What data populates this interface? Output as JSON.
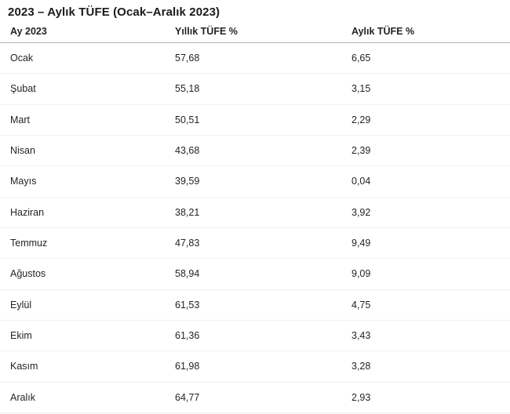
{
  "page": {
    "title": "2023 – Aylık TÜFE (Ocak–Aralık 2023)"
  },
  "table": {
    "columns": [
      "Ay 2023",
      "Yıllık TÜFE %",
      "Aylık TÜFE %"
    ],
    "rows": [
      [
        "Ocak",
        "57,68",
        "6,65"
      ],
      [
        "Şubat",
        "55,18",
        "3,15"
      ],
      [
        "Mart",
        "50,51",
        "2,29"
      ],
      [
        "Nisan",
        "43,68",
        "2,39"
      ],
      [
        "Mayıs",
        "39,59",
        "0,04"
      ],
      [
        "Haziran",
        "38,21",
        "3,92"
      ],
      [
        "Temmuz",
        "47,83",
        "9,49"
      ],
      [
        "Ağustos",
        "58,94",
        "9,09"
      ],
      [
        "Eylül",
        "61,53",
        "4,75"
      ],
      [
        "Ekim",
        "61,36",
        "3,43"
      ],
      [
        "Kasım",
        "61,98",
        "3,28"
      ],
      [
        "Aralık",
        "64,77",
        "2,93"
      ]
    ]
  },
  "chart_data": {
    "type": "table",
    "title": "2023 – Aylık TÜFE (Ocak–Aralık 2023)",
    "columns": [
      "Ay 2023",
      "Yıllık TÜFE %",
      "Aylık TÜFE %"
    ],
    "categories": [
      "Ocak",
      "Şubat",
      "Mart",
      "Nisan",
      "Mayıs",
      "Haziran",
      "Temmuz",
      "Ağustos",
      "Eylül",
      "Ekim",
      "Kasım",
      "Aralık"
    ],
    "series": [
      {
        "name": "Yıllık TÜFE %",
        "values": [
          57.68,
          55.18,
          50.51,
          43.68,
          39.59,
          38.21,
          47.83,
          58.94,
          61.53,
          61.36,
          61.98,
          64.77
        ]
      },
      {
        "name": "Aylık TÜFE %",
        "values": [
          6.65,
          3.15,
          2.29,
          2.39,
          0.04,
          3.92,
          9.49,
          9.09,
          4.75,
          3.43,
          3.28,
          2.93
        ]
      }
    ],
    "decimal_separator": ",",
    "legend_position": "none",
    "grid": "horizontal-row-separators"
  },
  "colors": {
    "background": "#ffffff",
    "text": "#252423",
    "title_text": "#1a1a1a",
    "header_border": "#b5b4b3",
    "row_border": "#f0f0f0"
  }
}
